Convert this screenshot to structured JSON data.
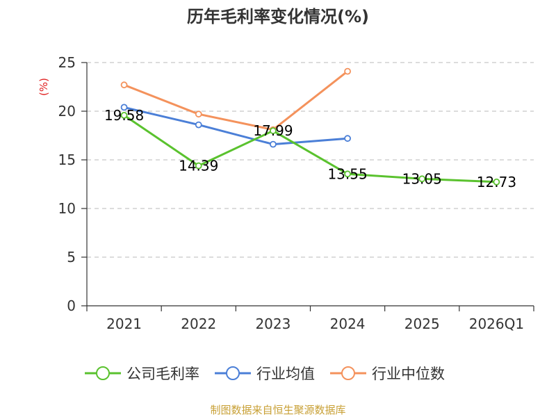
{
  "chart_data": {
    "type": "line",
    "title": "历年毛利率变化情况(%)",
    "ylabel": "(%)",
    "ylim": [
      0,
      25
    ],
    "yticks": [
      0,
      5,
      10,
      15,
      20,
      25
    ],
    "grid": true,
    "legend_position": "bottom",
    "categories": [
      "2021",
      "2022",
      "2023",
      "2024",
      "2025",
      "2026Q1"
    ],
    "series": [
      {
        "name": "公司毛利率",
        "color": "#5ac22e",
        "values": [
          19.58,
          14.39,
          17.99,
          13.55,
          13.05,
          12.73
        ],
        "show_labels": true
      },
      {
        "name": "行业均值",
        "color": "#4b7fd7",
        "values": [
          20.4,
          18.6,
          16.6,
          17.2,
          null,
          null
        ],
        "show_labels": false
      },
      {
        "name": "行业中位数",
        "color": "#f4925c",
        "values": [
          22.7,
          19.7,
          18.1,
          24.1,
          null,
          null
        ],
        "show_labels": false
      }
    ]
  },
  "ylabel_color": "#e02020",
  "source_text": "制图数据来自恒生聚源数据库",
  "source_color": "#c8a035"
}
